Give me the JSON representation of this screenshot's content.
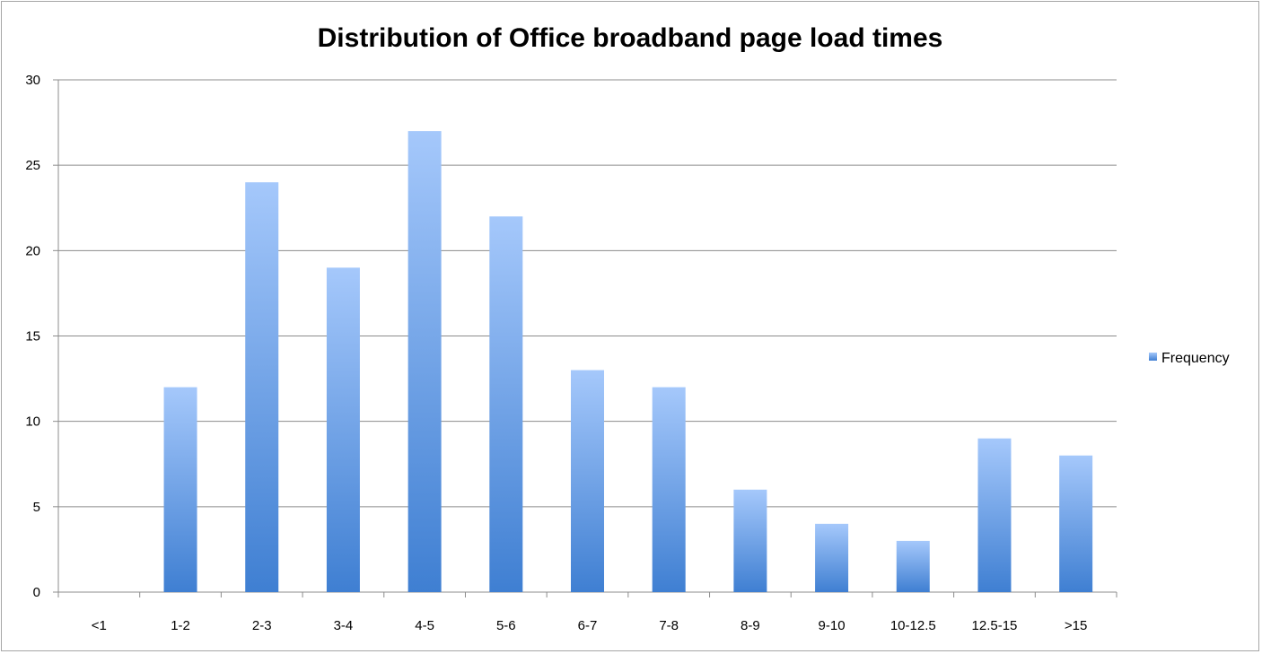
{
  "chart_data": {
    "type": "bar",
    "title": "Distribution of Office broadband page load times",
    "xlabel": "",
    "ylabel": "",
    "categories": [
      "<1",
      "1-2",
      "2-3",
      "3-4",
      "4-5",
      "5-6",
      "6-7",
      "7-8",
      "8-9",
      "9-10",
      "10-12.5",
      "12.5-15",
      ">15"
    ],
    "series": [
      {
        "name": "Frequency",
        "values": [
          0,
          12,
          24,
          19,
          27,
          22,
          13,
          12,
          6,
          4,
          3,
          9,
          8
        ]
      }
    ],
    "ylim": [
      0,
      30
    ],
    "yticks": [
      0,
      5,
      10,
      15,
      20,
      25,
      30
    ],
    "grid": true,
    "legend_position": "right",
    "colors": {
      "bar_top": "#a5c8fb",
      "bar_bottom": "#3f7fd2",
      "grid": "#8c8c8c",
      "axis": "#8c8c8c"
    }
  }
}
